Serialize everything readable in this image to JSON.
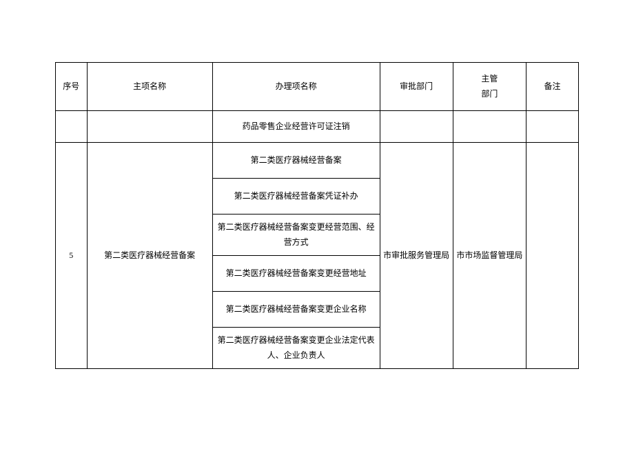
{
  "headers": {
    "seq": "序号",
    "main_name": "主项名称",
    "process_name": "办理项名称",
    "approve_dept": "审批部门",
    "supervise_dept_line1": "主管",
    "supervise_dept_line2": "部门",
    "remark": "备注"
  },
  "section_row": {
    "process": "药品零售企业经营许可证注销"
  },
  "group": {
    "seq": "5",
    "main_name": "第二类医疗器械经营备案",
    "approve_dept": "市审批服务管理局",
    "supervise_dept": "市市场监督管理局",
    "remark": "",
    "processes": [
      "第二类医疗器械经营备案",
      "第二类医疗器械经营备案凭证补办",
      "第二类医疗器械经营备案变更经营范围、经营方式",
      "第二类医疗器械经营备案变更经营地址",
      "第二类医疗器械经营备案变更企业名称",
      "第二类医疗器械经营备案变更企业法定代表人、企业负责人"
    ]
  },
  "style": {
    "border_color": "#000000",
    "background_color": "#ffffff",
    "text_color": "#000000",
    "font_size": 12
  }
}
